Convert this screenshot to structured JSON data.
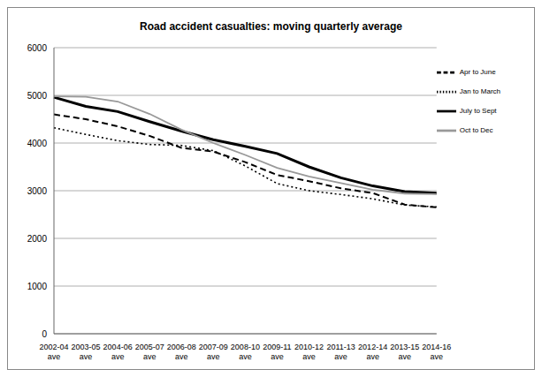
{
  "chart_data": {
    "type": "line",
    "title": "Road accident casualties: moving quarterly average",
    "categories": [
      "2002-04 ave",
      "2003-05 ave",
      "2004-06 ave",
      "2005-07 ave",
      "2006-08 ave",
      "2007-09 ave",
      "2008-10 ave",
      "2009-11 ave",
      "2010-12 ave",
      "2011-13 ave",
      "2012-14 ave",
      "2013-15 ave",
      "2014-16 ave"
    ],
    "series": [
      {
        "name": "Jan to March",
        "color": "#000000",
        "line_style": "dotted",
        "values": [
          4320,
          4180,
          4050,
          3970,
          3950,
          3840,
          3520,
          3150,
          3000,
          2920,
          2830,
          2700,
          2660
        ]
      },
      {
        "name": "Apr to June",
        "color": "#000000",
        "line_style": "dashed",
        "values": [
          4600,
          4500,
          4350,
          4150,
          3900,
          3820,
          3600,
          3330,
          3200,
          3050,
          2950,
          2710,
          2650
        ]
      },
      {
        "name": "July to Sept",
        "color": "#000000",
        "line_style": "solid",
        "values": [
          4960,
          4770,
          4660,
          4450,
          4250,
          4070,
          3930,
          3780,
          3500,
          3270,
          3100,
          2980,
          2950
        ]
      },
      {
        "name": "Oct to Dec",
        "color": "#999999",
        "line_style": "solid",
        "values": [
          4980,
          4970,
          4870,
          4610,
          4280,
          4000,
          3750,
          3480,
          3300,
          3160,
          3020,
          2940,
          2930
        ]
      }
    ],
    "ylim": [
      0,
      6000
    ],
    "yticks": [
      0,
      1000,
      2000,
      3000,
      4000,
      5000,
      6000
    ],
    "grid": true,
    "legend": "upper right"
  }
}
